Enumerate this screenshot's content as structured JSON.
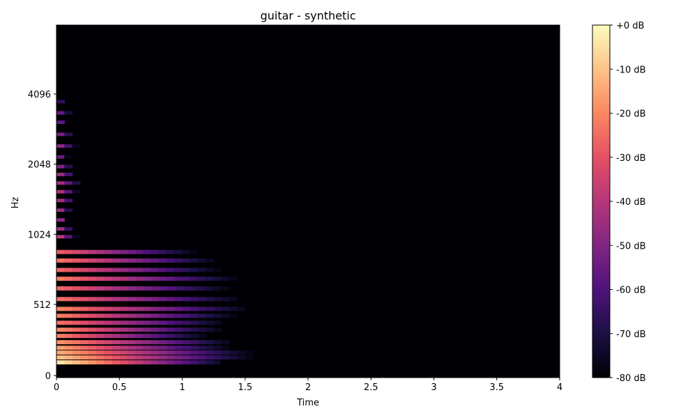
{
  "chart_data": {
    "type": "heatmap",
    "title": "guitar - synthetic",
    "xlabel": "Time",
    "ylabel": "Hz",
    "x_ticks": [
      "0",
      "0.5",
      "1",
      "1.5",
      "2",
      "2.5",
      "3",
      "3.5",
      "4"
    ],
    "x_tick_values": [
      0,
      0.5,
      1,
      1.5,
      2,
      2.5,
      3,
      3.5,
      4
    ],
    "xlim": [
      0,
      4
    ],
    "y_ticks": [
      "0",
      "512",
      "1024",
      "2048",
      "4096"
    ],
    "y_tick_values": [
      0,
      512,
      1024,
      2048,
      4096
    ],
    "ylim": [
      0,
      8000
    ],
    "y_scale": "log",
    "colormap": "magma",
    "colorbar_ticks": [
      "+0 dB",
      "-10 dB",
      "-20 dB",
      "-30 dB",
      "-40 dB",
      "-50 dB",
      "-60 dB",
      "-70 dB",
      "-80 dB"
    ],
    "colorbar_tick_values": [
      0,
      -10,
      -20,
      -30,
      -40,
      -50,
      -60,
      -70,
      -80
    ],
    "colorbar_range": [
      -80,
      0
    ],
    "partials": [
      {
        "freq_hz": 95,
        "peak_db": -4,
        "decay_s": 1.3
      },
      {
        "freq_hz": 130,
        "peak_db": -10,
        "decay_s": 1.6
      },
      {
        "freq_hz": 165,
        "peak_db": -14,
        "decay_s": 1.7
      },
      {
        "freq_hz": 200,
        "peak_db": -16,
        "decay_s": 1.55
      },
      {
        "freq_hz": 240,
        "peak_db": -18,
        "decay_s": 1.65
      },
      {
        "freq_hz": 285,
        "peak_db": -22,
        "decay_s": 1.5
      },
      {
        "freq_hz": 330,
        "peak_db": -20,
        "decay_s": 1.6
      },
      {
        "freq_hz": 380,
        "peak_db": -24,
        "decay_s": 1.75
      },
      {
        "freq_hz": 430,
        "peak_db": -22,
        "decay_s": 1.8
      },
      {
        "freq_hz": 480,
        "peak_db": -20,
        "decay_s": 1.85
      },
      {
        "freq_hz": 540,
        "peak_db": -24,
        "decay_s": 1.9
      },
      {
        "freq_hz": 600,
        "peak_db": -26,
        "decay_s": 1.85
      },
      {
        "freq_hz": 660,
        "peak_db": -22,
        "decay_s": 1.8
      },
      {
        "freq_hz": 720,
        "peak_db": -26,
        "decay_s": 1.75
      },
      {
        "freq_hz": 790,
        "peak_db": -24,
        "decay_s": 1.65
      },
      {
        "freq_hz": 860,
        "peak_db": -28,
        "decay_s": 1.55
      },
      {
        "freq_hz": 1000,
        "peak_db": -40,
        "decay_s": 0.25
      },
      {
        "freq_hz": 1080,
        "peak_db": -45,
        "decay_s": 0.22
      },
      {
        "freq_hz": 1180,
        "peak_db": -48,
        "decay_s": 0.15
      },
      {
        "freq_hz": 1300,
        "peak_db": -46,
        "decay_s": 0.2
      },
      {
        "freq_hz": 1430,
        "peak_db": -44,
        "decay_s": 0.25
      },
      {
        "freq_hz": 1560,
        "peak_db": -42,
        "decay_s": 0.28
      },
      {
        "freq_hz": 1700,
        "peak_db": -44,
        "decay_s": 0.35
      },
      {
        "freq_hz": 1850,
        "peak_db": -46,
        "decay_s": 0.28
      },
      {
        "freq_hz": 2000,
        "peak_db": -50,
        "decay_s": 0.25
      },
      {
        "freq_hz": 2200,
        "peak_db": -55,
        "decay_s": 0.2
      },
      {
        "freq_hz": 2450,
        "peak_db": -48,
        "decay_s": 0.32
      },
      {
        "freq_hz": 2750,
        "peak_db": -52,
        "decay_s": 0.3
      },
      {
        "freq_hz": 3100,
        "peak_db": -58,
        "decay_s": 0.2
      },
      {
        "freq_hz": 3400,
        "peak_db": -56,
        "decay_s": 0.28
      },
      {
        "freq_hz": 3800,
        "peak_db": -66,
        "decay_s": 0.12
      }
    ]
  }
}
